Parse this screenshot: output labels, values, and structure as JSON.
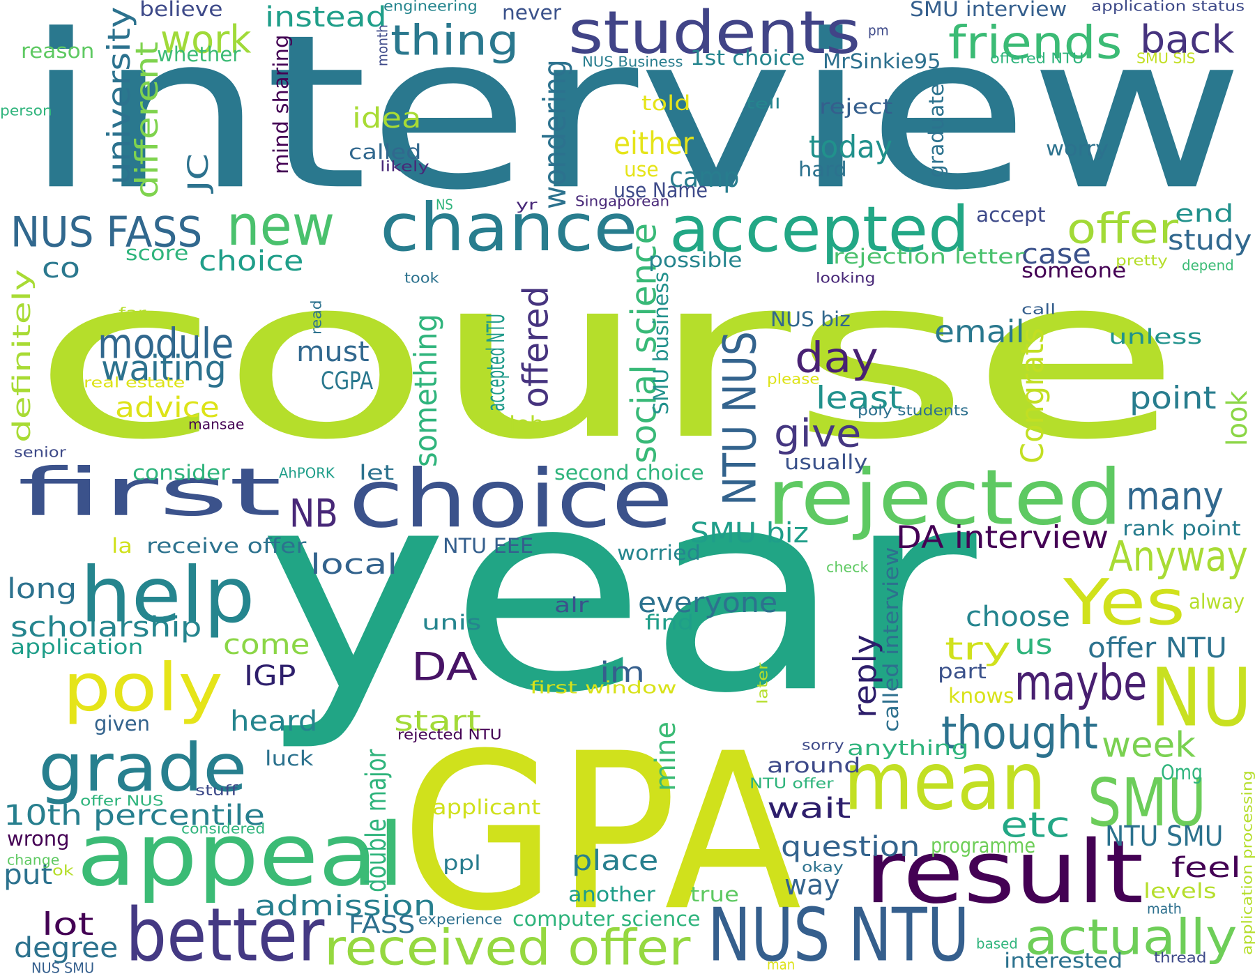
{
  "words": [
    {
      "text": "interview",
      "color": "#2a788e"
    },
    {
      "text": "course",
      "color": "#b5de2b"
    },
    {
      "text": "year",
      "color": "#21a585"
    },
    {
      "text": "GPA",
      "color": "#d0e11c"
    },
    {
      "text": "students",
      "color": "#414487"
    },
    {
      "text": "chance",
      "color": "#287d8e"
    },
    {
      "text": "accepted",
      "color": "#22a785"
    },
    {
      "text": "first",
      "color": "#3b528b"
    },
    {
      "text": "choice",
      "color": "#3b528b"
    },
    {
      "text": "rejected",
      "color": "#5ec962"
    },
    {
      "text": "result",
      "color": "#440154"
    },
    {
      "text": "appeal",
      "color": "#3bbb75"
    },
    {
      "text": "mean",
      "color": "#c2df23"
    },
    {
      "text": "NUS NTU",
      "color": "#355f8d"
    },
    {
      "text": "help",
      "color": "#25858e"
    },
    {
      "text": "poly",
      "color": "#e5e419"
    },
    {
      "text": "grade",
      "color": "#277f8e"
    },
    {
      "text": "better",
      "color": "#443983"
    },
    {
      "text": "received offer",
      "color": "#95d840"
    },
    {
      "text": "NU",
      "color": "#c8e020"
    },
    {
      "text": "SMU",
      "color": "#6ccd5a"
    },
    {
      "text": "Yes",
      "color": "#d0e11c"
    },
    {
      "text": "actually",
      "color": "#6ece58"
    },
    {
      "text": "thought",
      "color": "#2c728e"
    },
    {
      "text": "maybe",
      "color": "#481f70"
    },
    {
      "text": "new",
      "color": "#4ac16d"
    },
    {
      "text": "NUS FASS",
      "color": "#31688e"
    },
    {
      "text": "offer",
      "color": "#a2da37"
    },
    {
      "text": "friends",
      "color": "#3bbb75"
    },
    {
      "text": "back",
      "color": "#46337e"
    },
    {
      "text": "thing",
      "color": "#2a788e"
    },
    {
      "text": "work",
      "color": "#a0da39"
    },
    {
      "text": "module",
      "color": "#31688e"
    },
    {
      "text": "waiting",
      "color": "#2c728e"
    },
    {
      "text": "day",
      "color": "#482173"
    },
    {
      "text": "give",
      "color": "#453781"
    },
    {
      "text": "least",
      "color": "#21918c"
    },
    {
      "text": "many",
      "color": "#31688e"
    },
    {
      "text": "Anyway",
      "color": "#a8db34"
    },
    {
      "text": "DA interview",
      "color": "#440154"
    },
    {
      "text": "DA",
      "color": "#471365"
    },
    {
      "text": "NB",
      "color": "#482878"
    },
    {
      "text": "NTU NUS",
      "color": "#33638d"
    },
    {
      "text": "social science",
      "color": "#38b977"
    },
    {
      "text": "offered",
      "color": "#46337e"
    },
    {
      "text": "something",
      "color": "#2fb47c"
    },
    {
      "text": "accepted NTU",
      "color": "#1f9a8a"
    },
    {
      "text": "SMU business",
      "color": "#21918c"
    },
    {
      "text": "Congrats",
      "color": "#c2df23"
    },
    {
      "text": "look",
      "color": "#8bd646"
    },
    {
      "text": "point",
      "color": "#287d8e"
    },
    {
      "text": "email",
      "color": "#2a788e"
    },
    {
      "text": "university",
      "color": "#2c728e"
    },
    {
      "text": "different",
      "color": "#7fd34e"
    },
    {
      "text": "JC",
      "color": "#2c728e"
    },
    {
      "text": "idea",
      "color": "#a8db34"
    },
    {
      "text": "either",
      "color": "#e5e419"
    },
    {
      "text": "today",
      "color": "#21918c"
    },
    {
      "text": "camp",
      "color": "#287d8e"
    },
    {
      "text": "wondering",
      "color": "#2c728e"
    },
    {
      "text": "advice",
      "color": "#dde318"
    },
    {
      "text": "must",
      "color": "#31688e"
    },
    {
      "text": "CGPA",
      "color": "#2a788e"
    },
    {
      "text": "definitely",
      "color": "#a8db34"
    },
    {
      "text": "co",
      "color": "#2a788e"
    },
    {
      "text": "choice",
      "color": "#1f9e89"
    },
    {
      "text": "score",
      "color": "#2fb47c"
    },
    {
      "text": "possible",
      "color": "#25858e"
    },
    {
      "text": "case",
      "color": "#3b528b"
    },
    {
      "text": "study",
      "color": "#31688e"
    },
    {
      "text": "end",
      "color": "#21918c"
    },
    {
      "text": "accept",
      "color": "#3e4a89"
    },
    {
      "text": "someone",
      "color": "#440154"
    },
    {
      "text": "rejection letter",
      "color": "#4ac16d"
    },
    {
      "text": "pretty",
      "color": "#b5de2b"
    },
    {
      "text": "depend",
      "color": "#3bbb75"
    },
    {
      "text": "looking",
      "color": "#482878"
    },
    {
      "text": "NUS biz",
      "color": "#31688e"
    },
    {
      "text": "SMU biz",
      "color": "#1f9e89"
    },
    {
      "text": "usually",
      "color": "#3b528b"
    },
    {
      "text": "second choice",
      "color": "#2fb47c"
    },
    {
      "text": "consider",
      "color": "#2fb47c"
    },
    {
      "text": "let",
      "color": "#2c728e"
    },
    {
      "text": "rank point",
      "color": "#287d8e"
    },
    {
      "text": "unless",
      "color": "#20928c"
    },
    {
      "text": "local",
      "color": "#33638d"
    },
    {
      "text": "long",
      "color": "#2c728e"
    },
    {
      "text": "scholarship",
      "color": "#25858e"
    },
    {
      "text": "application",
      "color": "#1f9e89"
    },
    {
      "text": "come",
      "color": "#8bd646"
    },
    {
      "text": "IGP",
      "color": "#2d1e6b"
    },
    {
      "text": "everyone",
      "color": "#2c728e"
    },
    {
      "text": "im",
      "color": "#355f8d"
    },
    {
      "text": "choose",
      "color": "#25858e"
    },
    {
      "text": "try",
      "color": "#d0e11c"
    },
    {
      "text": "us",
      "color": "#2fb47c"
    },
    {
      "text": "offer NTU",
      "color": "#2c728e"
    },
    {
      "text": "reply",
      "color": "#2d1e6b"
    },
    {
      "text": "called interview",
      "color": "#2d708e"
    },
    {
      "text": "week",
      "color": "#7ad151"
    },
    {
      "text": "part",
      "color": "#3b528b"
    },
    {
      "text": "knows",
      "color": "#d8e219"
    },
    {
      "text": "start",
      "color": "#a2da37"
    },
    {
      "text": "heard",
      "color": "#25858e"
    },
    {
      "text": "given",
      "color": "#33638d"
    },
    {
      "text": "luck",
      "color": "#2c728e"
    },
    {
      "text": "mine",
      "color": "#3bbb75"
    },
    {
      "text": "etc",
      "color": "#22a785"
    },
    {
      "text": "question",
      "color": "#33638d"
    },
    {
      "text": "wait",
      "color": "#2d1e6b"
    },
    {
      "text": "way",
      "color": "#33638d"
    },
    {
      "text": "place",
      "color": "#277f8e"
    },
    {
      "text": "10th percentile",
      "color": "#277f8e"
    },
    {
      "text": "wrong",
      "color": "#440154"
    },
    {
      "text": "put",
      "color": "#2c728e"
    },
    {
      "text": "lot",
      "color": "#440154"
    },
    {
      "text": "degree",
      "color": "#2c728e"
    },
    {
      "text": "admission",
      "color": "#277f8e"
    },
    {
      "text": "FASS",
      "color": "#2d708e"
    },
    {
      "text": "computer science",
      "color": "#2fb47c"
    },
    {
      "text": "another",
      "color": "#1f9e89"
    },
    {
      "text": "true",
      "color": "#5ec962"
    },
    {
      "text": "NTU SMU",
      "color": "#2c728e"
    },
    {
      "text": "feel",
      "color": "#440154"
    },
    {
      "text": "interested",
      "color": "#2c728e"
    },
    {
      "text": "levels",
      "color": "#b5de2b"
    },
    {
      "text": "Omg",
      "color": "#2fb47c"
    },
    {
      "text": "anything",
      "color": "#2fb47c"
    },
    {
      "text": "around",
      "color": "#3e4a89"
    },
    {
      "text": "programme",
      "color": "#6ece58"
    },
    {
      "text": "double major",
      "color": "#2fb47c"
    },
    {
      "text": "applicant",
      "color": "#d0e11c"
    },
    {
      "text": "ppl",
      "color": "#287d8e"
    },
    {
      "text": "first window",
      "color": "#d8e219"
    },
    {
      "text": "find",
      "color": "#1f9e89"
    },
    {
      "text": "unis",
      "color": "#25858e"
    },
    {
      "text": "alr",
      "color": "#3b528b"
    },
    {
      "text": "worried",
      "color": "#25858e"
    },
    {
      "text": "NTU EEE",
      "color": "#355f8d"
    },
    {
      "text": "receive offer",
      "color": "#2c728e"
    },
    {
      "text": "la",
      "color": "#d0e11c"
    },
    {
      "text": "instead",
      "color": "#1f9e89"
    },
    {
      "text": "believe",
      "color": "#3e4a89"
    },
    {
      "text": "whether",
      "color": "#3bbb75"
    },
    {
      "text": "reason",
      "color": "#5ec962"
    },
    {
      "text": "person",
      "color": "#2fb47c"
    },
    {
      "text": "engineering",
      "color": "#25858e"
    },
    {
      "text": "month",
      "color": "#3e4a89"
    },
    {
      "text": "never",
      "color": "#3b528b"
    },
    {
      "text": "SMU interview",
      "color": "#355f8d"
    },
    {
      "text": "pm",
      "color": "#3e4a89"
    },
    {
      "text": "application status",
      "color": "#3e4a89"
    },
    {
      "text": "offered NTU",
      "color": "#2fb47c"
    },
    {
      "text": "SMU SIS",
      "color": "#c2df23"
    },
    {
      "text": "NUS Business",
      "color": "#287d8e"
    },
    {
      "text": "1st choice",
      "color": "#25858e"
    },
    {
      "text": "MrSinkie95",
      "color": "#2d708e"
    },
    {
      "text": "told",
      "color": "#e5e419"
    },
    {
      "text": "tell",
      "color": "#25858e"
    },
    {
      "text": "reject",
      "color": "#355f8d"
    },
    {
      "text": "graduate",
      "color": "#2c728e"
    },
    {
      "text": "worry",
      "color": "#2c728e"
    },
    {
      "text": "called",
      "color": "#31688e"
    },
    {
      "text": "likely",
      "color": "#482878"
    },
    {
      "text": "mind sharing",
      "color": "#440154"
    },
    {
      "text": "use",
      "color": "#e5e419"
    },
    {
      "text": "use Name",
      "color": "#3e4a89"
    },
    {
      "text": "hard",
      "color": "#2c728e"
    },
    {
      "text": "NS",
      "color": "#2fb47c"
    },
    {
      "text": "yr",
      "color": "#482878"
    },
    {
      "text": "Singaporean",
      "color": "#482878"
    },
    {
      "text": "took",
      "color": "#2c728e"
    },
    {
      "text": "far",
      "color": "#b5de2b"
    },
    {
      "text": "read",
      "color": "#2c728e"
    },
    {
      "text": "real estate",
      "color": "#dde318"
    },
    {
      "text": "leh",
      "color": "#b5de2b"
    },
    {
      "text": "mansae",
      "color": "#440154"
    },
    {
      "text": "senior",
      "color": "#3e4a89"
    },
    {
      "text": "AhPORK",
      "color": "#1f9e89"
    },
    {
      "text": "poly students",
      "color": "#2d708e"
    },
    {
      "text": "please",
      "color": "#dde318"
    },
    {
      "text": "call",
      "color": "#355f8d"
    },
    {
      "text": "check",
      "color": "#5ec962"
    },
    {
      "text": "alway",
      "color": "#b5de2b"
    },
    {
      "text": "later",
      "color": "#b5de2b"
    },
    {
      "text": "sorry",
      "color": "#3e4a89"
    },
    {
      "text": "NTU offer",
      "color": "#2fb47c"
    },
    {
      "text": "okay",
      "color": "#2c728e"
    },
    {
      "text": "stuff",
      "color": "#3e4a89"
    },
    {
      "text": "offer NUS",
      "color": "#2fb47c"
    },
    {
      "text": "considered",
      "color": "#2fb47c"
    },
    {
      "text": "change",
      "color": "#5ec962"
    },
    {
      "text": "ok",
      "color": "#b5de2b"
    },
    {
      "text": "experience",
      "color": "#2d708e"
    },
    {
      "text": "math",
      "color": "#2d708e"
    },
    {
      "text": "application processing",
      "color": "#b5de2b"
    },
    {
      "text": "thread",
      "color": "#3e4a89"
    },
    {
      "text": "based",
      "color": "#2fb47c"
    },
    {
      "text": "man",
      "color": "#dde318"
    },
    {
      "text": "NUS SMU",
      "color": "#355f8d"
    },
    {
      "text": "rejected NTU",
      "color": "#440154"
    }
  ]
}
